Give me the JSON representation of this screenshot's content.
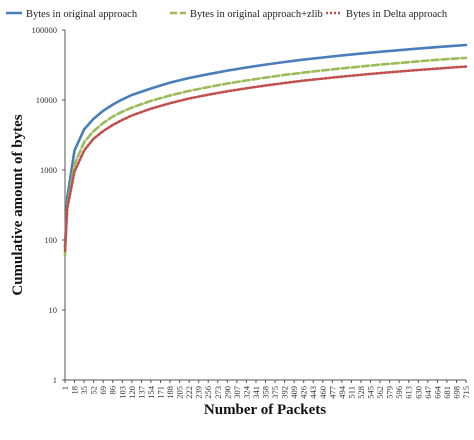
{
  "chart_data": {
    "type": "line",
    "xlabel": "Number of Packets",
    "ylabel": "Cumulative amount of bytes",
    "yscale": "log",
    "ylim": [
      1,
      100000
    ],
    "xlim": [
      1,
      715
    ],
    "grid": false,
    "legend_position": "top",
    "y_ticks": [
      {
        "value": 1,
        "label": "1"
      },
      {
        "value": 10,
        "label": "10"
      },
      {
        "value": 100,
        "label": "100"
      },
      {
        "value": 1000,
        "label": "1000"
      },
      {
        "value": 10000,
        "label": "10000"
      },
      {
        "value": 100000,
        "label": "100000"
      }
    ],
    "x_ticks": [
      "1",
      "18",
      "35",
      "52",
      "69",
      "86",
      "103",
      "120",
      "137",
      "154",
      "171",
      "188",
      "205",
      "222",
      "239",
      "256",
      "273",
      "290",
      "307",
      "324",
      "341",
      "358",
      "375",
      "392",
      "409",
      "426",
      "443",
      "460",
      "477",
      "494",
      "511",
      "528",
      "545",
      "562",
      "579",
      "596",
      "613",
      "630",
      "647",
      "664",
      "681",
      "698",
      "715"
    ],
    "x": [
      1,
      5,
      18,
      35,
      52,
      69,
      86,
      103,
      120,
      154,
      188,
      222,
      256,
      290,
      324,
      358,
      392,
      426,
      460,
      494,
      528,
      562,
      596,
      630,
      664,
      698,
      715
    ],
    "series": [
      {
        "name": "Bytes in original approach",
        "color": "#4a7ebb",
        "style": "solid",
        "values": [
          80,
          400,
          1900,
          3800,
          5400,
          7000,
          8600,
          10200,
          11800,
          14600,
          17700,
          20600,
          23400,
          26300,
          29100,
          32000,
          34900,
          37800,
          40500,
          43300,
          46000,
          48800,
          51500,
          54200,
          56900,
          59700,
          61000
        ]
      },
      {
        "name": "Bytes in original approach+zlib",
        "color": "#9bbb59",
        "style": "dashed",
        "values": [
          60,
          300,
          1200,
          2500,
          3600,
          4700,
          5800,
          6800,
          7800,
          9700,
          11600,
          13500,
          15300,
          17200,
          19000,
          20900,
          22800,
          24600,
          26500,
          28300,
          30100,
          32000,
          33800,
          35700,
          37500,
          39300,
          40000
        ]
      },
      {
        "name": "Bytes in Delta approach",
        "color": "#c0504d",
        "style": "dotted",
        "values": [
          70,
          280,
          950,
          1900,
          2800,
          3600,
          4400,
          5200,
          6000,
          7500,
          9000,
          10500,
          11900,
          13300,
          14700,
          16100,
          17500,
          18900,
          20200,
          21600,
          22900,
          24200,
          25500,
          26800,
          28100,
          29400,
          30000
        ]
      }
    ]
  }
}
